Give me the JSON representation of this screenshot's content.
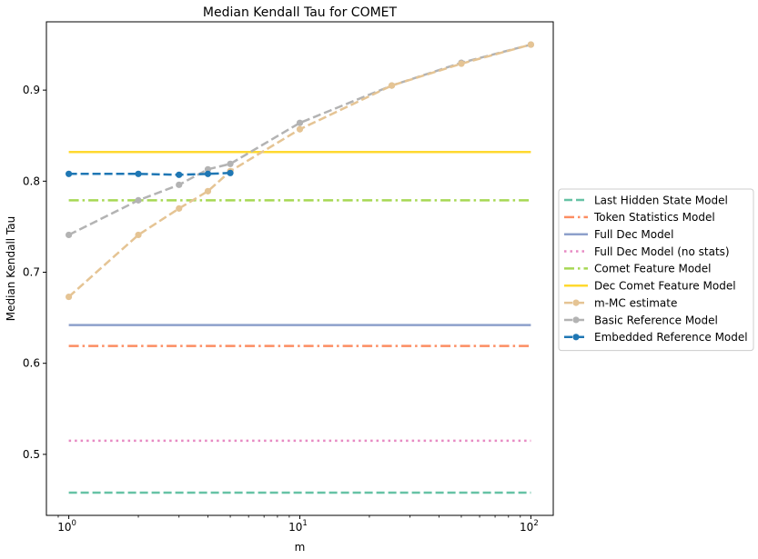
{
  "chart_data": {
    "type": "line",
    "title": "Median Kendall Tau for COMET",
    "xlabel": "m",
    "ylabel": "Median Kendall Tau",
    "xscale": "log",
    "xlim": [
      0.8,
      125
    ],
    "ylim": [
      0.433,
      0.975
    ],
    "grid": false,
    "legend_placement": "center-right-outside",
    "x_ticks": [
      {
        "value": 1,
        "base": "10",
        "exp": "0"
      },
      {
        "value": 10,
        "base": "10",
        "exp": "1"
      },
      {
        "value": 100,
        "base": "10",
        "exp": "2"
      }
    ],
    "y_ticks": [
      {
        "value": 0.5,
        "label": "0.5"
      },
      {
        "value": 0.6,
        "label": "0.6"
      },
      {
        "value": 0.7,
        "label": "0.7"
      },
      {
        "value": 0.8,
        "label": "0.8"
      },
      {
        "value": 0.9,
        "label": "0.9"
      }
    ],
    "series": [
      {
        "name": "Last Hidden State Model",
        "kind": "hline",
        "y": 0.458,
        "color": "#66c2a5",
        "dash": "dashed",
        "marker": false
      },
      {
        "name": "Token Statistics Model",
        "kind": "hline",
        "y": 0.619,
        "color": "#fc8d62",
        "dash": "dashdot",
        "marker": false
      },
      {
        "name": "Full Dec Model",
        "kind": "hline",
        "y": 0.642,
        "color": "#8da0cb",
        "dash": "solid",
        "marker": false
      },
      {
        "name": "Full Dec Model (no stats)",
        "kind": "hline",
        "y": 0.515,
        "color": "#e78ac3",
        "dash": "dotted",
        "marker": false
      },
      {
        "name": "Comet Feature Model",
        "kind": "hline",
        "y": 0.779,
        "color": "#a6d854",
        "dash": "dashdot",
        "marker": false
      },
      {
        "name": "Dec Comet Feature Model",
        "kind": "hline",
        "y": 0.832,
        "color": "#ffd92f",
        "dash": "solid",
        "marker": false
      },
      {
        "name": "m-MC estimate",
        "kind": "line",
        "color": "#e5c494",
        "dash": "dashed",
        "marker": true,
        "x": [
          1,
          2,
          3,
          4,
          5,
          10,
          25,
          50,
          100
        ],
        "y": [
          0.673,
          0.741,
          0.77,
          0.789,
          0.811,
          0.857,
          0.905,
          0.929,
          0.95
        ]
      },
      {
        "name": "Basic Reference Model",
        "kind": "line",
        "color": "#b3b3b3",
        "dash": "dashed",
        "marker": true,
        "x": [
          1,
          2,
          3,
          4,
          5,
          10,
          25,
          50,
          100
        ],
        "y": [
          0.741,
          0.779,
          0.796,
          0.813,
          0.819,
          0.864,
          0.905,
          0.93,
          0.95
        ]
      },
      {
        "name": "Embedded Reference Model",
        "kind": "line",
        "color": "#1f77b4",
        "dash": "dashed",
        "marker": true,
        "x": [
          1,
          2,
          3,
          4,
          5
        ],
        "y": [
          0.808,
          0.808,
          0.807,
          0.808,
          0.809
        ]
      }
    ]
  }
}
